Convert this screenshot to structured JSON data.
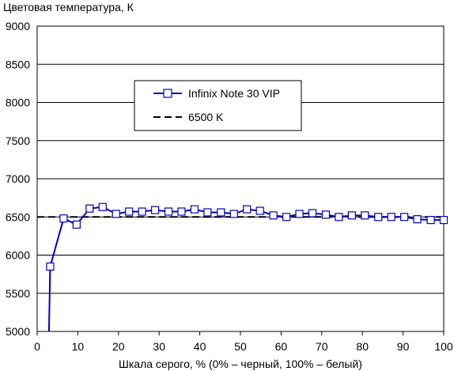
{
  "chart_data": {
    "type": "line",
    "title": "Цветовая температура, К",
    "xlabel": "Шкала серого, % (0% – черный, 100% – белый)",
    "ylabel": "",
    "xlim": [
      0,
      100
    ],
    "ylim": [
      5000,
      9000
    ],
    "x_ticks": [
      0,
      10,
      20,
      30,
      40,
      50,
      60,
      70,
      80,
      90,
      100
    ],
    "y_ticks": [
      5000,
      5500,
      6000,
      6500,
      7000,
      7500,
      8000,
      8500,
      9000
    ],
    "grid": "horizontal",
    "legend_placement": "upper-center",
    "series": [
      {
        "name": "Infinix Note 30 VIP",
        "color": "#0000c8",
        "marker": "square",
        "lead_in": [
          [
            2.9,
            5000
          ]
        ],
        "x": [
          3.2,
          6.5,
          9.7,
          12.9,
          16.1,
          19.4,
          22.6,
          25.8,
          29.0,
          32.3,
          35.5,
          38.7,
          41.9,
          45.2,
          48.4,
          51.6,
          54.8,
          58.1,
          61.3,
          64.5,
          67.7,
          71.0,
          74.2,
          77.4,
          80.6,
          83.9,
          87.1,
          90.3,
          93.5,
          96.8,
          100.0
        ],
        "y": [
          5850,
          6480,
          6400,
          6610,
          6630,
          6540,
          6570,
          6570,
          6590,
          6570,
          6570,
          6600,
          6560,
          6560,
          6540,
          6600,
          6580,
          6520,
          6500,
          6540,
          6550,
          6530,
          6500,
          6520,
          6520,
          6500,
          6500,
          6500,
          6470,
          6460,
          6460
        ]
      },
      {
        "name": "6500 K",
        "color": "#000000",
        "style": "dashed",
        "x": [
          0,
          100
        ],
        "y": [
          6500,
          6500
        ]
      }
    ]
  }
}
